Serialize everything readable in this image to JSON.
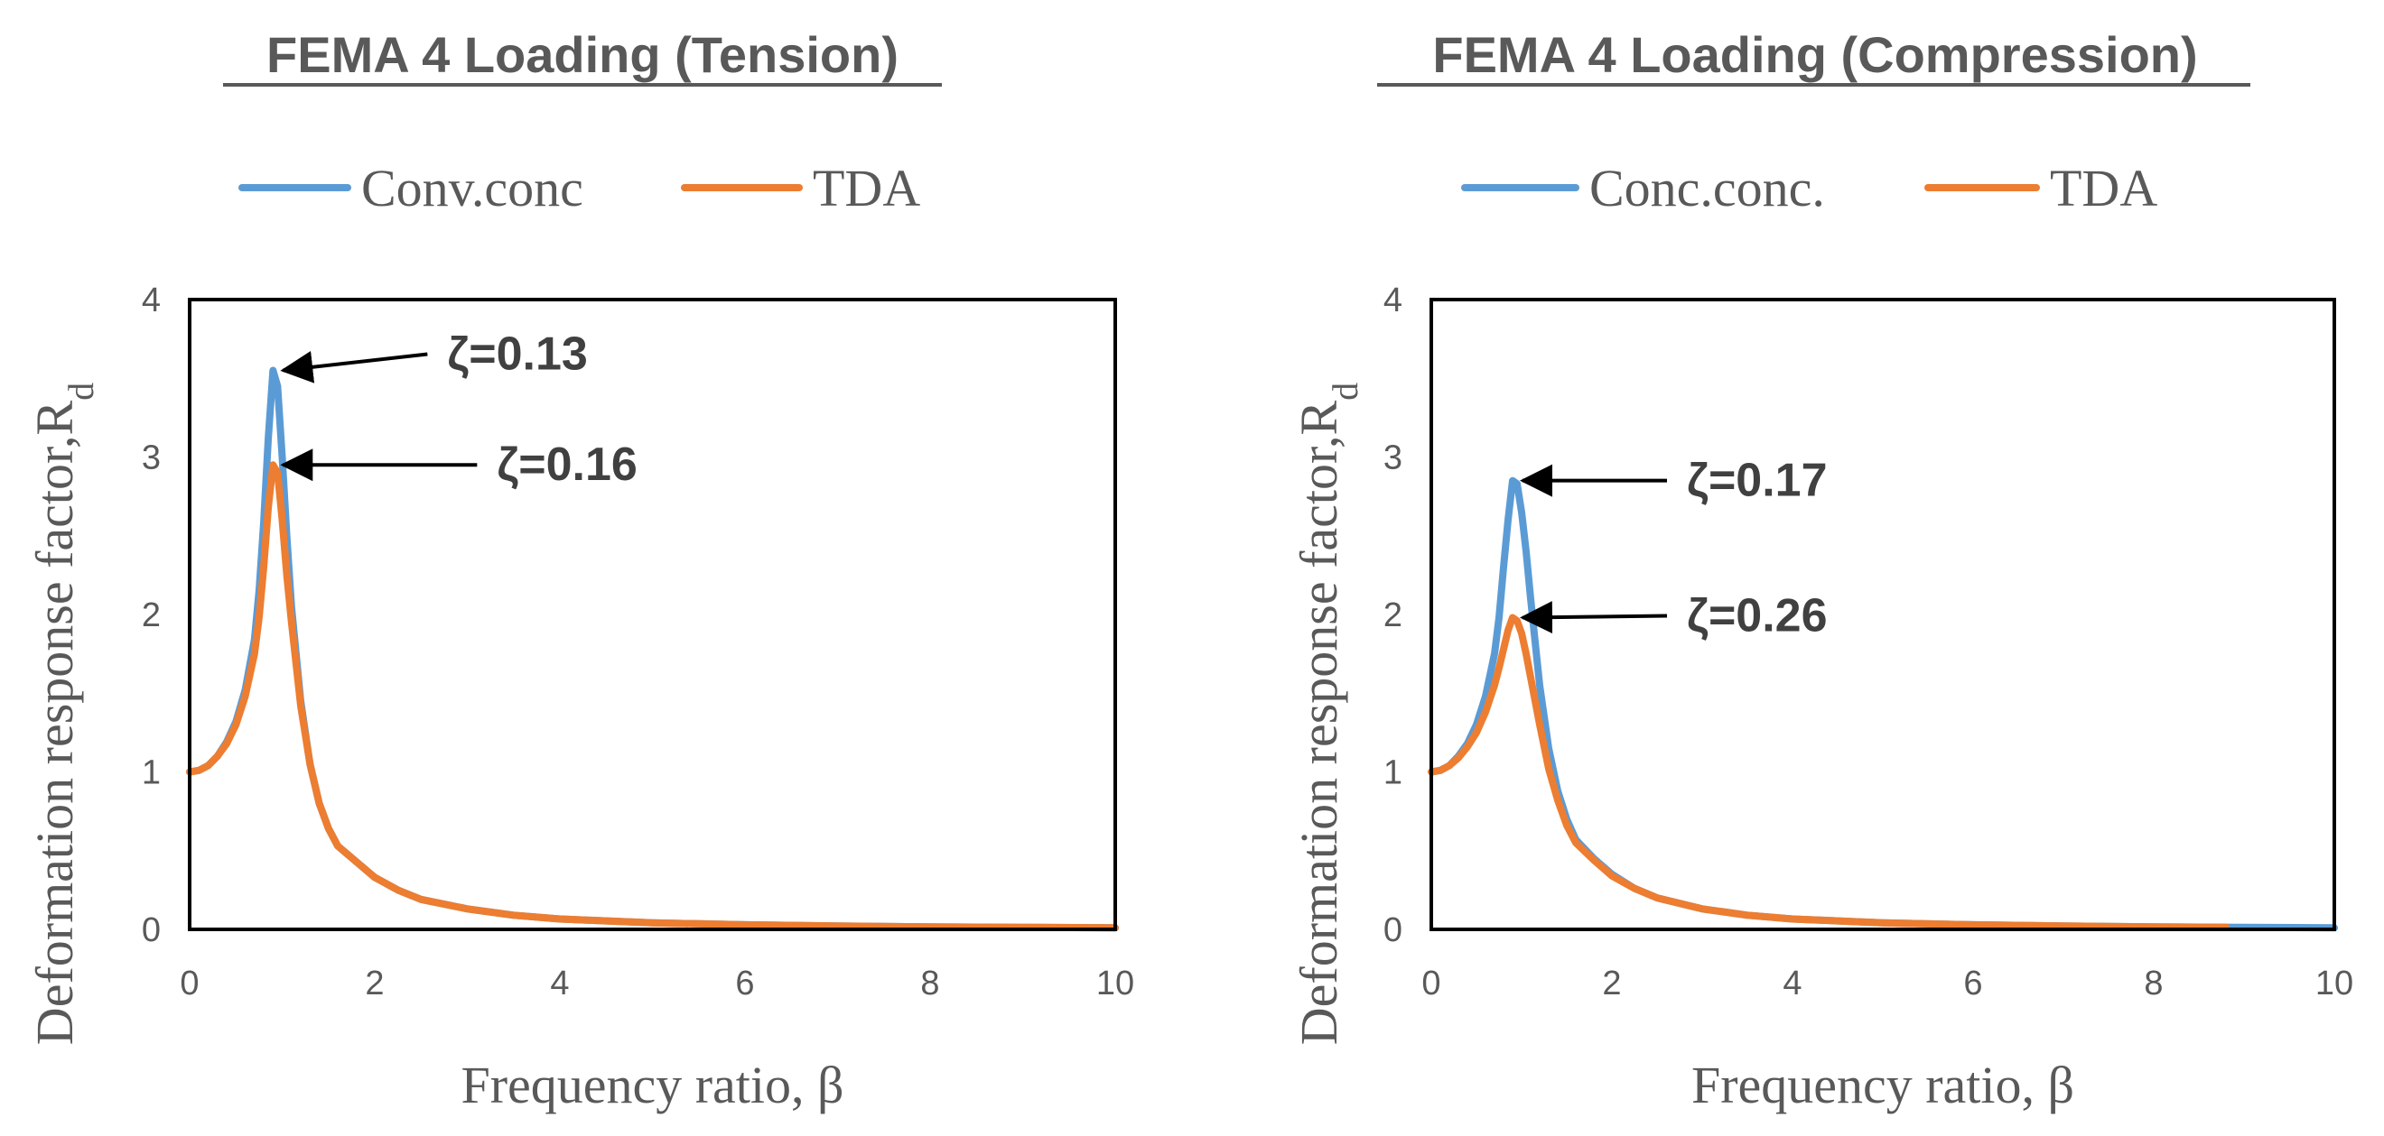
{
  "chart_data": [
    {
      "type": "line",
      "title": "FEMA 4 Loading (Tension)",
      "xlabel": "Frequency ratio, β",
      "ylabel": "Deformation response factor,",
      "ylabel_main": "Deformation response factor,R",
      "ylabel_sub": "d",
      "xlim": [
        0,
        10
      ],
      "ylim": [
        0,
        4
      ],
      "xticks": [
        "0",
        "2",
        "4",
        "6",
        "8",
        "10"
      ],
      "yticks": [
        "0",
        "1",
        "2",
        "3",
        "4"
      ],
      "legend_position": "top",
      "series": [
        {
          "name": "Conv.conc",
          "color": "#5B9BD5",
          "x": [
            0,
            0.1,
            0.2,
            0.3,
            0.4,
            0.5,
            0.6,
            0.7,
            0.75,
            0.8,
            0.85,
            0.9,
            0.95,
            1.0,
            1.05,
            1.1,
            1.2,
            1.3,
            1.4,
            1.5,
            1.6,
            1.8,
            2.0,
            2.25,
            2.5,
            3.0,
            3.5,
            4.0,
            5.0,
            6.0,
            7.0,
            8.0,
            9.0,
            10.0
          ],
          "y": [
            1.0,
            1.01,
            1.04,
            1.1,
            1.19,
            1.32,
            1.52,
            1.84,
            2.15,
            2.58,
            3.12,
            3.55,
            3.45,
            3.0,
            2.5,
            2.05,
            1.45,
            1.05,
            0.8,
            0.64,
            0.53,
            0.43,
            0.33,
            0.25,
            0.19,
            0.13,
            0.09,
            0.066,
            0.042,
            0.029,
            0.021,
            0.016,
            0.013,
            0.01
          ]
        },
        {
          "name": "TDA",
          "color": "#ED7D31",
          "x": [
            0,
            0.1,
            0.2,
            0.3,
            0.4,
            0.5,
            0.6,
            0.7,
            0.75,
            0.8,
            0.85,
            0.9,
            0.95,
            1.0,
            1.05,
            1.1,
            1.2,
            1.3,
            1.4,
            1.5,
            1.6,
            1.8,
            2.0,
            2.25,
            2.5,
            3.0,
            3.5,
            4.0,
            5.0,
            6.0,
            7.0,
            8.0,
            9.0,
            10.0
          ],
          "y": [
            1.0,
            1.01,
            1.04,
            1.1,
            1.18,
            1.3,
            1.48,
            1.75,
            1.98,
            2.3,
            2.68,
            2.95,
            2.9,
            2.6,
            2.25,
            1.95,
            1.42,
            1.05,
            0.8,
            0.64,
            0.53,
            0.43,
            0.33,
            0.25,
            0.19,
            0.13,
            0.09,
            0.066,
            0.042,
            0.029,
            0.021,
            0.016,
            0.013,
            0.01
          ]
        }
      ],
      "annotations": [
        {
          "text": "ζ=0.13",
          "x": 0.93,
          "y": 3.55
        },
        {
          "text": "ζ=0.16",
          "x": 0.93,
          "y": 2.95
        }
      ]
    },
    {
      "type": "line",
      "title": "FEMA 4 Loading (Compression)",
      "xlabel": "Frequency ratio, β",
      "ylabel": "Deformation response factor,",
      "ylabel_main": "Deformation response factor,R",
      "ylabel_sub": "d",
      "xlim": [
        0,
        10
      ],
      "ylim": [
        0,
        4
      ],
      "xticks": [
        "0",
        "2",
        "4",
        "6",
        "8",
        "10"
      ],
      "yticks": [
        "0",
        "1",
        "2",
        "3",
        "4"
      ],
      "legend_position": "top",
      "series": [
        {
          "name": "Conc.conc.",
          "color": "#5B9BD5",
          "x": [
            0,
            0.1,
            0.2,
            0.3,
            0.4,
            0.5,
            0.6,
            0.7,
            0.75,
            0.8,
            0.85,
            0.9,
            0.95,
            1.0,
            1.05,
            1.1,
            1.2,
            1.3,
            1.4,
            1.5,
            1.6,
            1.8,
            2.0,
            2.25,
            2.5,
            3.0,
            3.5,
            4.0,
            5.0,
            6.0,
            7.0,
            8.0,
            9.0,
            10.0
          ],
          "y": [
            1.0,
            1.01,
            1.04,
            1.1,
            1.18,
            1.3,
            1.48,
            1.75,
            1.98,
            2.3,
            2.6,
            2.85,
            2.83,
            2.65,
            2.4,
            2.1,
            1.55,
            1.15,
            0.88,
            0.7,
            0.57,
            0.45,
            0.35,
            0.26,
            0.2,
            0.13,
            0.09,
            0.066,
            0.042,
            0.029,
            0.021,
            0.016,
            0.013,
            0.01
          ]
        },
        {
          "name": "TDA",
          "color": "#ED7D31",
          "x": [
            0,
            0.1,
            0.2,
            0.3,
            0.4,
            0.5,
            0.6,
            0.7,
            0.75,
            0.8,
            0.85,
            0.9,
            0.95,
            1.0,
            1.05,
            1.1,
            1.2,
            1.3,
            1.4,
            1.5,
            1.6,
            1.8,
            2.0,
            2.25,
            2.5,
            3.0,
            3.5,
            4.0,
            5.0,
            6.0,
            7.0,
            8.0,
            8.8
          ],
          "y": [
            1.0,
            1.01,
            1.04,
            1.09,
            1.16,
            1.25,
            1.38,
            1.55,
            1.66,
            1.78,
            1.9,
            1.98,
            1.96,
            1.88,
            1.75,
            1.6,
            1.3,
            1.02,
            0.82,
            0.66,
            0.55,
            0.44,
            0.34,
            0.26,
            0.2,
            0.13,
            0.09,
            0.066,
            0.042,
            0.029,
            0.021,
            0.016,
            0.014
          ]
        }
      ],
      "annotations": [
        {
          "text": "ζ=0.17",
          "x": 0.93,
          "y": 2.85
        },
        {
          "text": "ζ=0.26",
          "x": 0.93,
          "y": 1.98
        }
      ]
    }
  ]
}
